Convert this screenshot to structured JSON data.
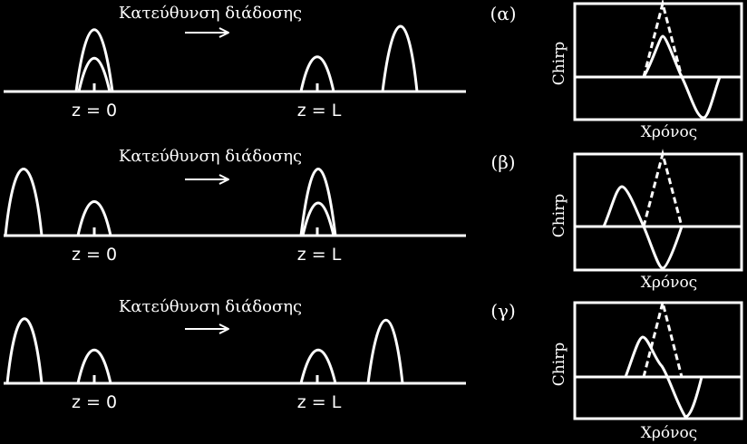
{
  "colors": {
    "background": "#000000",
    "ink": "#ffffff"
  },
  "direction_arrow": "right-arrow",
  "rows": [
    {
      "tag": "(α)",
      "direction_label": "Κατεύθυνση διάδοσης",
      "z_start_label": "z = 0",
      "z_end_label": "z = L",
      "inset": {
        "y_label": "Chirp",
        "x_label": "Χρόνος"
      }
    },
    {
      "tag": "(β)",
      "direction_label": "Κατεύθυνση διάδοσης",
      "z_start_label": "z = 0",
      "z_end_label": "z = L",
      "inset": {
        "y_label": "Chirp",
        "x_label": "Χρόνος"
      }
    },
    {
      "tag": "(γ)",
      "direction_label": "Κατεύθυνση διάδοσης",
      "z_start_label": "z = 0",
      "z_end_label": "z = L",
      "inset": {
        "y_label": "Chirp",
        "x_label": "Χρόνος"
      }
    }
  ]
}
